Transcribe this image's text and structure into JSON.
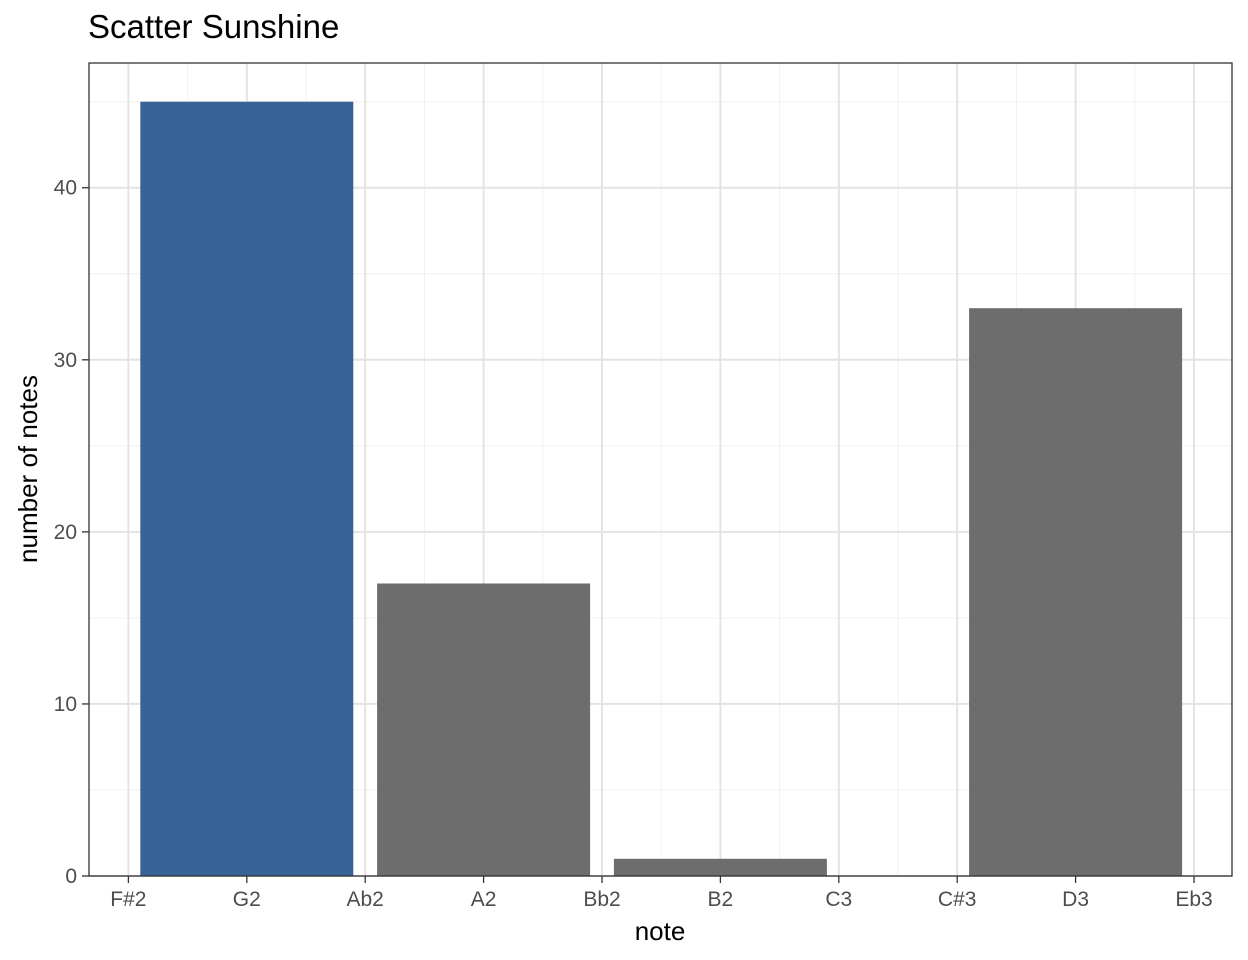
{
  "chart_data": {
    "type": "bar",
    "title": "Scatter Sunshine",
    "xlabel": "note",
    "ylabel": "number of notes",
    "x_ticks": [
      "F#2",
      "G2",
      "Ab2",
      "A2",
      "Bb2",
      "B2",
      "C3",
      "C#3",
      "D3",
      "Eb3"
    ],
    "categories": [
      "G2",
      "A2",
      "B2",
      "D3"
    ],
    "values": [
      45,
      17,
      1,
      33
    ],
    "bar_colors": [
      "#386396",
      "#6d6d6d",
      "#6d6d6d",
      "#6d6d6d"
    ],
    "y_ticks": [
      0,
      10,
      20,
      30,
      40
    ],
    "ylim": [
      0,
      47.25
    ],
    "grid": true
  }
}
